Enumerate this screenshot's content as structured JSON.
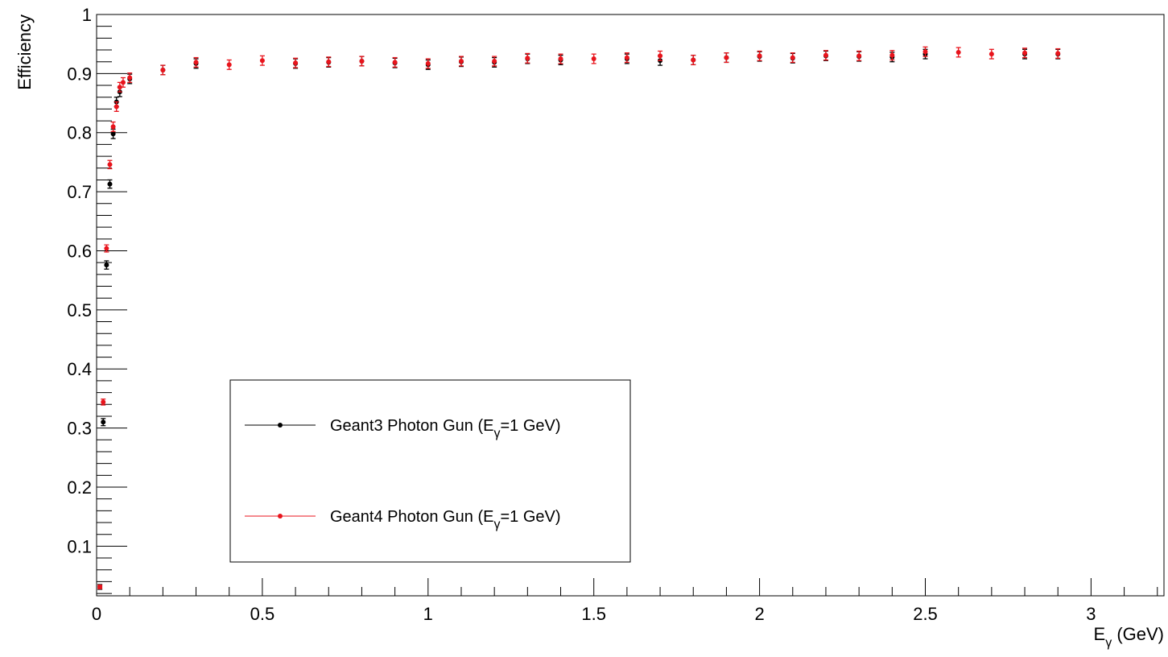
{
  "chart_data": {
    "type": "scatter",
    "x_label": "Eγ (GeV)",
    "y_label": "Efficiency",
    "xlim": [
      0,
      3.22
    ],
    "ylim": [
      0.016,
      1.0
    ],
    "xticks": [
      0,
      0.5,
      1,
      1.5,
      2,
      2.5,
      3
    ],
    "yticks": [
      0.1,
      0.2,
      0.3,
      0.4,
      0.5,
      0.6,
      0.7,
      0.8,
      0.9,
      1
    ],
    "series": [
      {
        "name": "Geant3 Photon Gun (Eγ=1 GeV)",
        "color": "#000000",
        "x": [
          0.01,
          0.02,
          0.03,
          0.04,
          0.05,
          0.06,
          0.07,
          0.1,
          0.2,
          0.3,
          0.6,
          0.7,
          0.8,
          0.9,
          1.0,
          1.1,
          1.2,
          1.3,
          1.4,
          1.6,
          1.7,
          1.8,
          1.9,
          2.0,
          2.1,
          2.2,
          2.3,
          2.4,
          2.5,
          2.8,
          2.9
        ],
        "values": [
          0.031,
          0.31,
          0.576,
          0.713,
          0.798,
          0.852,
          0.869,
          0.891,
          0.906,
          0.917,
          0.917,
          0.919,
          0.921,
          0.918,
          0.915,
          0.92,
          0.919,
          0.925,
          0.923,
          0.925,
          0.922,
          0.923,
          0.927,
          0.929,
          0.926,
          0.93,
          0.929,
          0.928,
          0.933,
          0.933,
          0.933
        ],
        "errors": [
          0.004,
          0.006,
          0.007,
          0.007,
          0.008,
          0.008,
          0.008,
          0.008,
          0.008,
          0.008,
          0.008,
          0.008,
          0.008,
          0.008,
          0.008,
          0.008,
          0.008,
          0.008,
          0.008,
          0.008,
          0.008,
          0.008,
          0.008,
          0.008,
          0.008,
          0.008,
          0.008,
          0.008,
          0.008,
          0.008,
          0.008
        ]
      },
      {
        "name": "Geant4 Photon Gun (Eγ=1 GeV)",
        "color": "#e8141c",
        "x": [
          0.01,
          0.02,
          0.03,
          0.04,
          0.05,
          0.06,
          0.07,
          0.08,
          0.1,
          0.2,
          0.3,
          0.4,
          0.5,
          0.6,
          0.7,
          0.8,
          0.9,
          1.0,
          1.1,
          1.2,
          1.3,
          1.4,
          1.5,
          1.6,
          1.7,
          1.8,
          1.9,
          2.0,
          2.1,
          2.2,
          2.3,
          2.4,
          2.5,
          2.6,
          2.7,
          2.8,
          2.9
        ],
        "values": [
          0.031,
          0.344,
          0.604,
          0.746,
          0.81,
          0.844,
          0.877,
          0.885,
          0.893,
          0.906,
          0.919,
          0.915,
          0.922,
          0.918,
          0.92,
          0.921,
          0.919,
          0.917,
          0.921,
          0.921,
          0.926,
          0.925,
          0.925,
          0.927,
          0.93,
          0.923,
          0.927,
          0.93,
          0.927,
          0.931,
          0.93,
          0.931,
          0.937,
          0.936,
          0.933,
          0.935,
          0.934
        ],
        "errors": [
          0.003,
          0.005,
          0.006,
          0.007,
          0.008,
          0.008,
          0.008,
          0.008,
          0.008,
          0.008,
          0.008,
          0.008,
          0.008,
          0.008,
          0.008,
          0.008,
          0.008,
          0.008,
          0.008,
          0.008,
          0.008,
          0.008,
          0.008,
          0.008,
          0.008,
          0.008,
          0.008,
          0.008,
          0.008,
          0.008,
          0.008,
          0.008,
          0.008,
          0.008,
          0.008,
          0.008,
          0.008
        ]
      }
    ]
  }
}
